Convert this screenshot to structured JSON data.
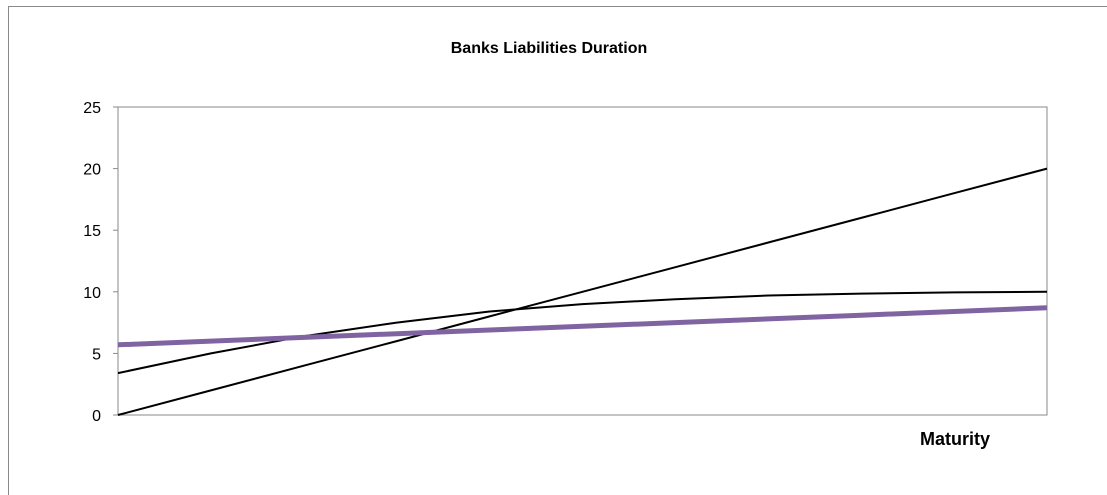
{
  "chart_data": {
    "type": "line",
    "title": "Banks Liabilities Duration",
    "xlabel": "Maturity",
    "ylabel": "",
    "ylim": [
      0,
      25
    ],
    "yticks": [
      "0",
      "5",
      "10",
      "15",
      "20",
      "25"
    ],
    "x": [
      0,
      0.1,
      0.2,
      0.3,
      0.4,
      0.5,
      0.6,
      0.7,
      0.8,
      0.9,
      1.0
    ],
    "series": [
      {
        "values": [
          0,
          2,
          4,
          6,
          8,
          10,
          12,
          14,
          16,
          18,
          20
        ],
        "color": "#000000"
      },
      {
        "values": [
          3.4,
          5.0,
          6.4,
          7.5,
          8.4,
          9.0,
          9.4,
          9.7,
          9.85,
          9.95,
          10.0
        ],
        "color": "#000000"
      },
      {
        "values": [
          5.7,
          6.0,
          6.3,
          6.6,
          6.9,
          7.2,
          7.5,
          7.8,
          8.1,
          8.4,
          8.7
        ],
        "color": "#8064a2"
      }
    ],
    "grid": false,
    "legend": "none"
  }
}
